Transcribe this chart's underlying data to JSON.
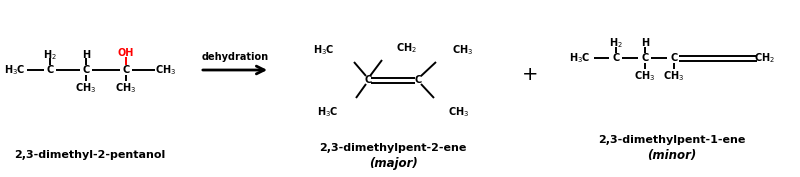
{
  "background_color": "#ffffff",
  "figsize": [
    8.0,
    1.77
  ],
  "dpi": 100,
  "reactant_label": "2,3-dimethyl-2-pentanol",
  "product1_label": "2,3-dimethylpent-2-ene",
  "product1_sublabel": "(major)",
  "product2_label": "2,3-dimethylpent-1-ene",
  "product2_sublabel": "(minor)",
  "arrow_label": "dehydration",
  "bond_color": "#000000",
  "oh_color": "#ff0000",
  "text_color": "#000000",
  "font_size_struct": 7.0,
  "font_size_label": 8.0,
  "font_size_sublabel": 8.5,
  "font_size_arrow": 7.0,
  "font_size_plus": 14
}
